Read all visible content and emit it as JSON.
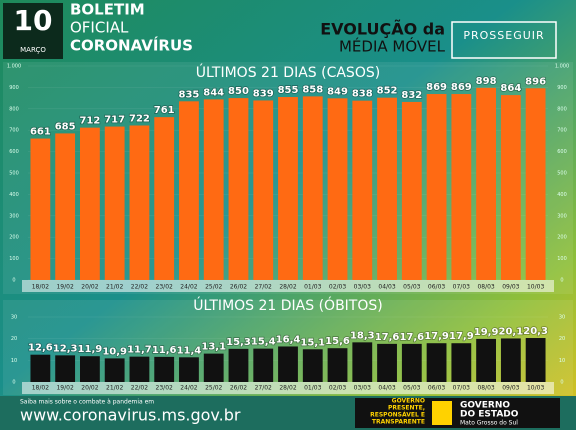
{
  "header": {
    "day": "10",
    "month": "MARÇO",
    "line1": "BOLETIM",
    "line2": "OFICIAL",
    "line3": "CORONAVÍRUS",
    "evo1": "EVOLUÇÃO da",
    "evo2": "MÉDIA MÓVEL",
    "brand": "PROSSEGUIR"
  },
  "footer": {
    "info": "Saiba mais sobre o combate à pandemia em",
    "url": "www.coronavirus.ms.gov.br",
    "motto": [
      "GOVERNO",
      "PRESENTE,",
      "RESPONSÁVEL E",
      "TRANSPARENTE"
    ],
    "gov": [
      "GOVERNO",
      "DO ESTADO"
    ],
    "state": "Mato Grosso do Sul"
  },
  "chart_data": [
    {
      "type": "bar",
      "title": "ÚLTIMOS 21 DIAS (CASOS)",
      "color": "#ff6a13",
      "categories": [
        "18/02",
        "19/02",
        "20/02",
        "21/02",
        "22/02",
        "23/02",
        "24/02",
        "25/02",
        "26/02",
        "27/02",
        "28/02",
        "01/03",
        "02/03",
        "03/03",
        "04/03",
        "05/03",
        "06/03",
        "07/03",
        "08/03",
        "09/03",
        "10/03"
      ],
      "values": [
        661,
        685,
        712,
        717,
        722,
        761,
        835,
        844,
        850,
        839,
        855,
        858,
        849,
        838,
        852,
        832,
        869,
        869,
        898,
        864,
        896
      ],
      "ylim": [
        0,
        1000
      ],
      "yticks": [
        0,
        100,
        200,
        300,
        400,
        500,
        600,
        700,
        800,
        900,
        {
          "value": 1000,
          "label": "1.000"
        }
      ],
      "grid": true
    },
    {
      "type": "bar",
      "title": "ÚLTIMOS 21 DIAS (ÓBITOS)",
      "color": "#111111",
      "categories": [
        "18/02",
        "19/02",
        "20/02",
        "21/02",
        "22/02",
        "23/02",
        "24/02",
        "25/02",
        "26/02",
        "27/02",
        "28/02",
        "01/03",
        "02/03",
        "03/03",
        "04/03",
        "05/03",
        "06/03",
        "07/03",
        "08/03",
        "09/03",
        "10/03"
      ],
      "values": [
        12.6,
        12.3,
        11.9,
        10.9,
        11.7,
        11.6,
        11.4,
        13.1,
        15.3,
        15.4,
        16.4,
        15.1,
        15.6,
        18.3,
        17.6,
        17.6,
        17.9,
        17.9,
        19.9,
        20.1,
        20.3
      ],
      "value_labels": [
        "12,6",
        "12,3",
        "11,9",
        "10,9",
        "11,7",
        "11,6",
        "11,4",
        "13,1",
        "15,3",
        "15,4",
        "16,4",
        "15,1",
        "15,6",
        "18,3",
        "17,6",
        "17,6",
        "17,9",
        "17,9",
        "19,9",
        "20,1",
        "20,3"
      ],
      "ylim": [
        0,
        30
      ],
      "yticks": [
        0,
        10,
        20,
        30
      ],
      "grid": true
    }
  ]
}
